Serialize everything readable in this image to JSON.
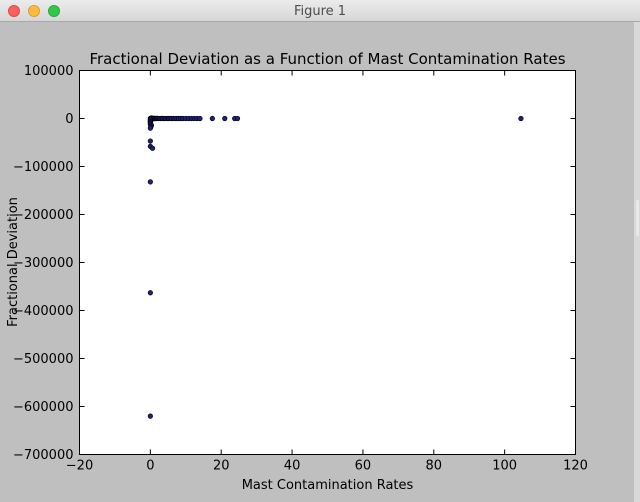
{
  "window": {
    "title": "Figure 1",
    "buttons": [
      "close-button",
      "minimize-button",
      "maximize-button"
    ]
  },
  "chart_data": {
    "type": "scatter",
    "title": "Fractional Deviation as a Function of Mast Contamination Rates",
    "xlabel": "Mast Contamination Rates",
    "ylabel": "Fractional Deviation",
    "xlim": [
      -20,
      120
    ],
    "ylim": [
      -700000,
      100000
    ],
    "xticks": [
      -20,
      0,
      20,
      40,
      60,
      80,
      100,
      120
    ],
    "yticks": [
      100000,
      0,
      -100000,
      -200000,
      -300000,
      -400000,
      -500000,
      -600000,
      -700000
    ],
    "xtick_labels": [
      "−20",
      "0",
      "20",
      "40",
      "60",
      "80",
      "100",
      "120"
    ],
    "ytick_labels": [
      "100000",
      "0",
      "−100000",
      "−200000",
      "−300000",
      "−400000",
      "−500000",
      "−600000",
      "−700000"
    ],
    "grid": false,
    "marker_color": "#1f1f78",
    "series": [
      {
        "points": [
          [
            0,
            0
          ],
          [
            0.1,
            500
          ],
          [
            0.2,
            -800
          ],
          [
            0.3,
            1200
          ],
          [
            0.4,
            -1500
          ],
          [
            0.5,
            800
          ],
          [
            0.6,
            -300
          ],
          [
            0.7,
            300
          ],
          [
            0.8,
            -600
          ],
          [
            0.9,
            200
          ],
          [
            1.0,
            0
          ],
          [
            1.2,
            400
          ],
          [
            1.4,
            -200
          ],
          [
            1.6,
            300
          ],
          [
            1.8,
            0
          ],
          [
            2.0,
            200
          ],
          [
            2.3,
            -100
          ],
          [
            2.6,
            100
          ],
          [
            3.0,
            0
          ],
          [
            3.3,
            200
          ],
          [
            3.6,
            0
          ],
          [
            4.0,
            -100
          ],
          [
            4.4,
            100
          ],
          [
            4.8,
            0
          ],
          [
            5.2,
            0
          ],
          [
            5.6,
            100
          ],
          [
            6.0,
            0
          ],
          [
            6.5,
            0
          ],
          [
            7.0,
            -100
          ],
          [
            7.5,
            0
          ],
          [
            8.0,
            0
          ],
          [
            8.6,
            0
          ],
          [
            9.2,
            0
          ],
          [
            10.0,
            0
          ],
          [
            10.8,
            0
          ],
          [
            11.6,
            0
          ],
          [
            12.4,
            0
          ],
          [
            13.2,
            0
          ],
          [
            14.0,
            0
          ],
          [
            17.5,
            0
          ],
          [
            21.0,
            0
          ],
          [
            23.8,
            0
          ],
          [
            24.6,
            0
          ],
          [
            104.6,
            0
          ],
          [
            0,
            -2500
          ],
          [
            0,
            -4000
          ],
          [
            0,
            -6000
          ],
          [
            0,
            -8000
          ],
          [
            0,
            -10000
          ],
          [
            0,
            -12000
          ],
          [
            0.3,
            -14000
          ],
          [
            0.2,
            -16000
          ],
          [
            0.1,
            -18000
          ],
          [
            0,
            -20000
          ],
          [
            0,
            -47000
          ],
          [
            0,
            -58000
          ],
          [
            0.6,
            -62000
          ],
          [
            0,
            -132000
          ],
          [
            0,
            -363000
          ],
          [
            0,
            -620000
          ]
        ]
      }
    ]
  }
}
